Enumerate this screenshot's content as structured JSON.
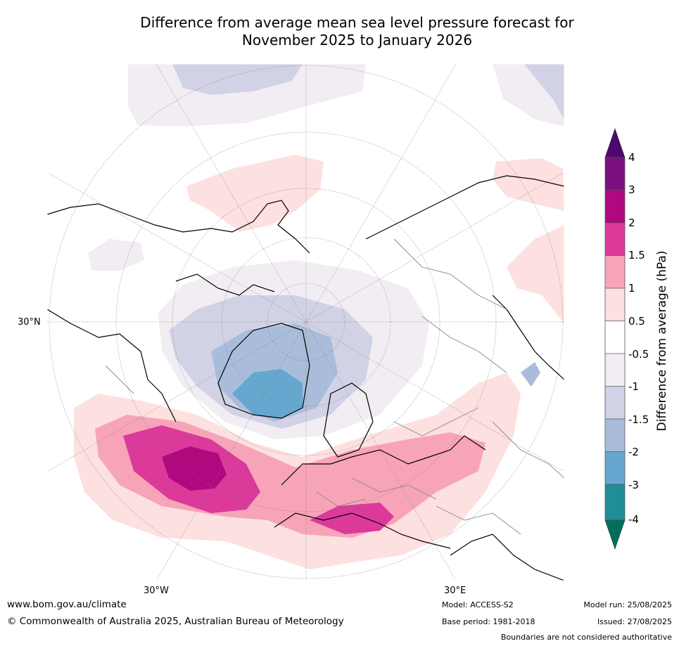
{
  "title_line1": "Difference from average mean sea level pressure forecast for",
  "title_line2": "November 2025 to January 2026",
  "map": {
    "projection": "north-polar-stereographic",
    "lat_labels": [
      "30°N"
    ],
    "lon_labels": [
      "30°W",
      "30°E"
    ],
    "features": [
      "coastlines",
      "country-boundaries",
      "graticule"
    ]
  },
  "colorbar": {
    "title": "Difference from average (hPa)",
    "tick_labels": [
      "4",
      "3",
      "2",
      "1.5",
      "1",
      "0.5",
      "-0.5",
      "-1",
      "-1.5",
      "-2",
      "-3",
      "-4"
    ],
    "colors_top_to_bottom": [
      "#4b0a6b",
      "#7c0f80",
      "#b0087f",
      "#db3a9b",
      "#f7a4b9",
      "#fde0e0",
      "#ffffff",
      "#f2edf3",
      "#d2d2e6",
      "#a9bddb",
      "#66a7cf",
      "#1f8e97",
      "#00705a"
    ]
  },
  "footer": {
    "website": "www.bom.gov.au/climate",
    "copyright": "© Commonwealth of Australia 2025, Australian Bureau of Meteorology",
    "model": "Model: ACCESS-S2",
    "base_period": "Base period: 1981-2018",
    "model_run": "Model run: 25/08/2025",
    "issued": "Issued: 27/08/2025",
    "disclaimer": "Boundaries are not considered authoritative"
  }
}
